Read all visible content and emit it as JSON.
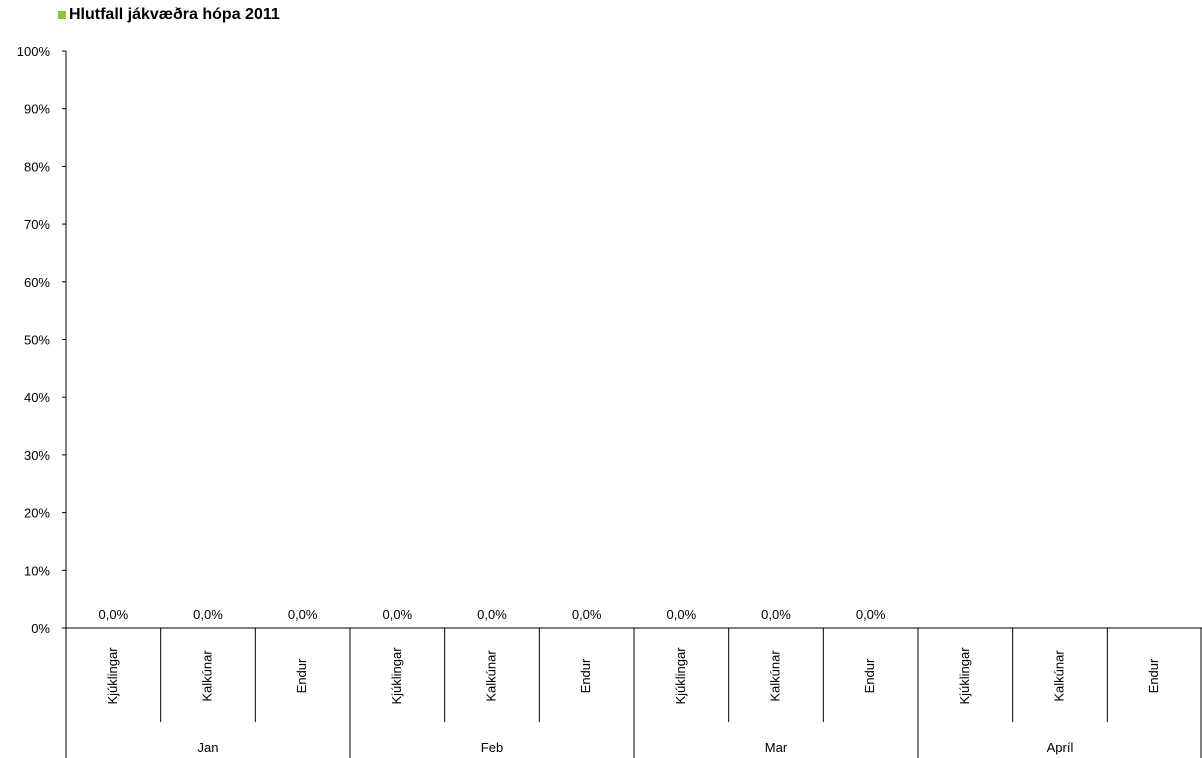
{
  "chart_data": {
    "type": "bar",
    "title": "",
    "xlabel": "",
    "ylabel": "",
    "ylim": [
      0,
      1
    ],
    "y_ticks": [
      "0%",
      "10%",
      "20%",
      "30%",
      "40%",
      "50%",
      "60%",
      "70%",
      "80%",
      "90%",
      "100%"
    ],
    "grid": false,
    "legend_position": "top-left",
    "groups": [
      {
        "label": "Jan",
        "categories": [
          "Kjúklingar",
          "Kalkúnar",
          "Endur"
        ]
      },
      {
        "label": "Feb",
        "categories": [
          "Kjúklingar",
          "Kalkúnar",
          "Endur"
        ]
      },
      {
        "label": "Mar",
        "categories": [
          "Kjúklingar",
          "Kalkúnar",
          "Endur"
        ]
      },
      {
        "label": "Apríl",
        "categories": [
          "Kjúklingar",
          "Kalkúnar",
          "Endur"
        ]
      }
    ],
    "series": [
      {
        "name": "Hlutfall jákvæðra hópa 2011",
        "color": "#8dc63f",
        "values": [
          0,
          0,
          0,
          0,
          0,
          0,
          0,
          0,
          0,
          null,
          null,
          null
        ],
        "data_labels": [
          "0,0%",
          "0,0%",
          "0,0%",
          "0,0%",
          "0,0%",
          "0,0%",
          "0,0%",
          "0,0%",
          "0,0%",
          null,
          null,
          null
        ]
      }
    ]
  }
}
